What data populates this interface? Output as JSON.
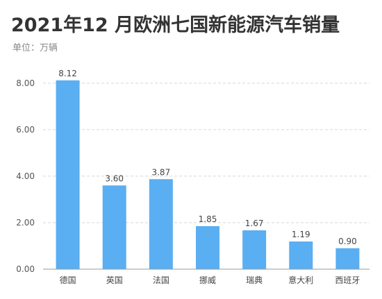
{
  "header": {
    "title": "2021年12 月欧洲七国新能源汽车销量",
    "subtitle": "单位：万辆"
  },
  "colors": {
    "bar": "#5aaef2",
    "grid": "#d6d6d6",
    "axis": "#9a9a9a"
  },
  "chart_data": {
    "type": "bar",
    "title": "2021年12 月欧洲七国新能源汽车销量",
    "ylabel": "单位：万辆",
    "categories": [
      "德国",
      "英国",
      "法国",
      "挪威",
      "瑞典",
      "意大利",
      "西班牙"
    ],
    "values": [
      8.12,
      3.6,
      3.87,
      1.85,
      1.67,
      1.19,
      0.9
    ],
    "value_labels": [
      "8.12",
      "3.60",
      "3.87",
      "1.85",
      "1.67",
      "1.19",
      "0.90"
    ],
    "yticks": [
      "0.00",
      "2.00",
      "4.00",
      "6.00",
      "8.00"
    ],
    "ylim": [
      0,
      8.8
    ],
    "grid": true,
    "legend": "none"
  }
}
